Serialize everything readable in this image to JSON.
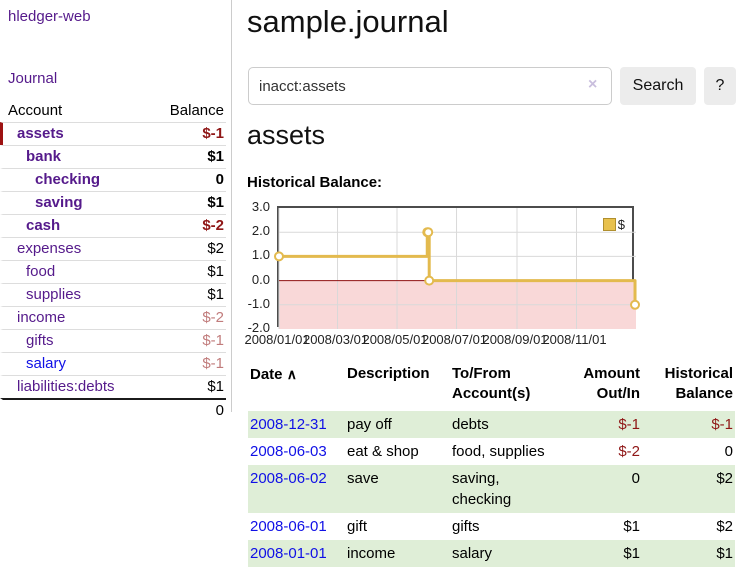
{
  "app": {
    "brand": "hledger-web",
    "nav_journal": "Journal"
  },
  "sidebar": {
    "header": {
      "account": "Account",
      "balance": "Balance"
    },
    "accounts": [
      {
        "name": "assets",
        "balance": "$-1",
        "depth": 1
      },
      {
        "name": "bank",
        "balance": "$1",
        "depth": 2
      },
      {
        "name": "checking",
        "balance": "0",
        "depth": 3
      },
      {
        "name": "saving",
        "balance": "$1",
        "depth": 3
      },
      {
        "name": "cash",
        "balance": "$-2",
        "depth": 2
      },
      {
        "name": "expenses",
        "balance": "$2",
        "depth": 1
      },
      {
        "name": "food",
        "balance": "$1",
        "depth": 2
      },
      {
        "name": "supplies",
        "balance": "$1",
        "depth": 2
      },
      {
        "name": "income",
        "balance": "$-2",
        "depth": 1
      },
      {
        "name": "gifts",
        "balance": "$-1",
        "depth": 2
      },
      {
        "name": "salary",
        "balance": "$-1",
        "depth": 2
      },
      {
        "name": "liabilities:debts",
        "balance": "$1",
        "depth": 1
      }
    ],
    "total": "0"
  },
  "main": {
    "title": "sample.journal",
    "search": {
      "value": "inacct:assets",
      "clear_icon": "×",
      "button": "Search",
      "help": "?"
    },
    "account_title": "assets",
    "chart_label": "Historical Balance:"
  },
  "chart_data": {
    "type": "line",
    "step": true,
    "title": "Historical Balance",
    "xrange": [
      "2008-01-01",
      "2009-01-01"
    ],
    "ylim": [
      -2.0,
      3.0
    ],
    "yticks": [
      {
        "v": 3,
        "label": "3.0"
      },
      {
        "v": 2,
        "label": "2.0"
      },
      {
        "v": 1,
        "label": "1.0"
      },
      {
        "v": 0,
        "label": "0.0"
      },
      {
        "v": -1,
        "label": "-1.0"
      },
      {
        "v": -2,
        "label": "-2.0"
      }
    ],
    "xticks": [
      {
        "date": "2008-01-01",
        "label": "2008/01/01"
      },
      {
        "date": "2008-03-01",
        "label": "2008/03/01"
      },
      {
        "date": "2008-05-01",
        "label": "2008/05/01"
      },
      {
        "date": "2008-07-01",
        "label": "2008/07/01"
      },
      {
        "date": "2008-09-01",
        "label": "2008/09/01"
      },
      {
        "date": "2008-11-01",
        "label": "2008/11/01"
      }
    ],
    "series": [
      {
        "name": "$",
        "points": [
          {
            "x": "2008-01-01",
            "y": 1
          },
          {
            "x": "2008-06-01",
            "y": 2
          },
          {
            "x": "2008-06-02",
            "y": 2
          },
          {
            "x": "2008-06-03",
            "y": 0
          },
          {
            "x": "2008-12-31",
            "y": -1
          }
        ]
      }
    ],
    "legend": {
      "position": "top-right",
      "label": "$"
    },
    "colors": {
      "line": "#e3ba4e",
      "marker_fill": "#ffffff",
      "zero_line": "#8f1010",
      "negative_region": "#f9d8d8",
      "grid": "#d9d9d9",
      "border": "#4c4c4c"
    }
  },
  "register": {
    "sort_icon": "∧",
    "headers": {
      "date": "Date",
      "description": "Description",
      "to_from": "To/From Account(s)",
      "amount": "Amount Out/In",
      "balance": "Historical Balance"
    },
    "rows": [
      {
        "date": "2008-12-31",
        "description": "pay off",
        "to_from": "debts",
        "amount": "$-1",
        "balance": "$-1"
      },
      {
        "date": "2008-06-03",
        "description": "eat & shop",
        "to_from": "food, supplies",
        "amount": "$-2",
        "balance": "0"
      },
      {
        "date": "2008-06-02",
        "description": "save",
        "to_from": "saving, checking",
        "amount": "0",
        "balance": "$2"
      },
      {
        "date": "2008-06-01",
        "description": "gift",
        "to_from": "gifts",
        "amount": "$1",
        "balance": "$2"
      },
      {
        "date": "2008-01-01",
        "description": "income",
        "to_from": "salary",
        "amount": "$1",
        "balance": "$1"
      }
    ]
  }
}
